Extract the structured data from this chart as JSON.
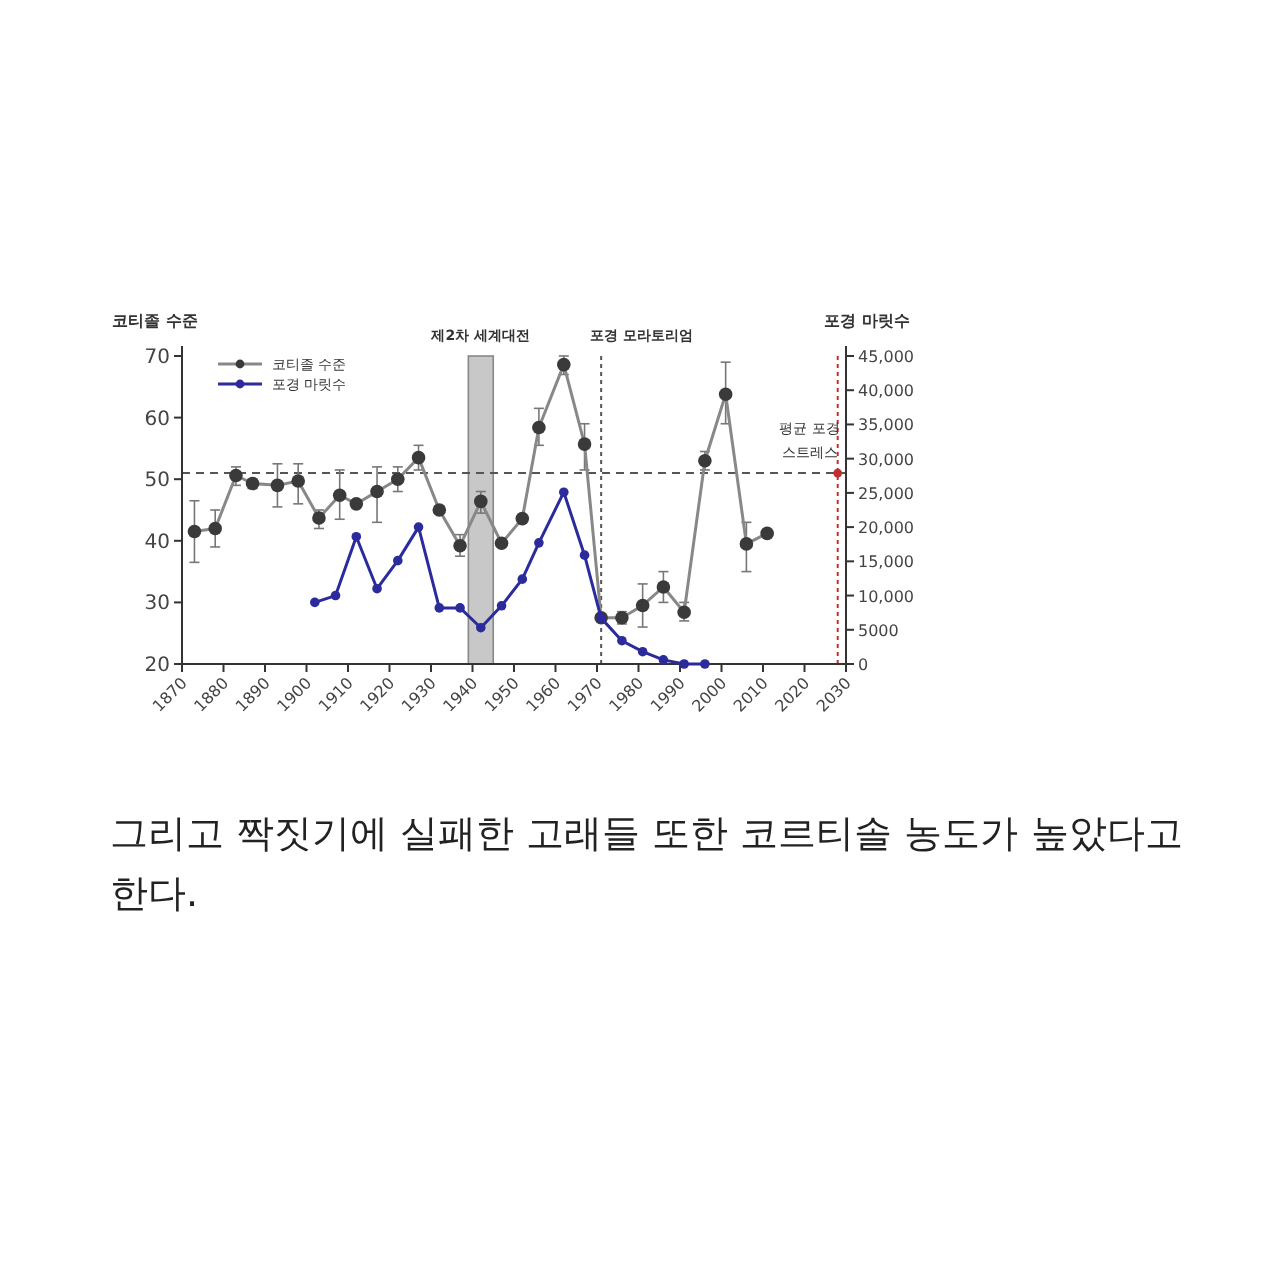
{
  "chart_data": {
    "type": "line",
    "ylabel": "코티졸 수준",
    "y2label": "포경 마릿수",
    "xlim": [
      1870,
      2030
    ],
    "xticks": [
      1870,
      1880,
      1890,
      1900,
      1910,
      1920,
      1930,
      1940,
      1950,
      1960,
      1970,
      1980,
      1990,
      2000,
      2010,
      2020,
      2030
    ],
    "ylim": [
      20,
      70
    ],
    "yticks": [
      20,
      30,
      40,
      50,
      60,
      70
    ],
    "y2lim": [
      0,
      45000
    ],
    "y2ticks": [
      0,
      {
        "value": 5000,
        "label": "5000"
      },
      {
        "value": 10000,
        "label": "10,000"
      },
      {
        "value": 15000,
        "label": "15,000"
      },
      {
        "value": 20000,
        "label": "20,000"
      },
      {
        "value": 25000,
        "label": "25,000"
      },
      {
        "value": 30000,
        "label": "30,000"
      },
      {
        "value": 35000,
        "label": "35,000"
      },
      {
        "value": 40000,
        "label": "40,000"
      },
      {
        "value": 45000,
        "label": "45,000"
      }
    ],
    "marker": "circle",
    "legend": "top left",
    "grid": false,
    "series": [
      {
        "name": "코티졸 수준",
        "color": "#3a3a3a",
        "x": [
          1873,
          1878,
          1883,
          1887,
          1893,
          1898,
          1903,
          1908,
          1912,
          1917,
          1922,
          1927,
          1932,
          1937,
          1942,
          1947,
          1952,
          1956,
          1962,
          1967,
          1971,
          1976,
          1981,
          1986,
          1991,
          1996,
          2001,
          2006,
          2011
        ],
        "values": [
          41.5,
          42,
          50.6,
          49.3,
          49,
          49.7,
          43.7,
          47.4,
          46,
          48,
          50,
          53.5,
          45,
          39.2,
          46.4,
          39.6,
          43.6,
          58.4,
          68.6,
          55.7,
          27.5,
          27.5,
          29.5,
          32.5,
          28.4,
          53,
          63.8,
          39.5,
          41.2
        ],
        "errors": [
          [
            36.5,
            46.5
          ],
          [
            39,
            45
          ],
          [
            49,
            52
          ],
          [
            48.5,
            50
          ],
          [
            45.5,
            52.5
          ],
          [
            46,
            52.5
          ],
          [
            42,
            45
          ],
          [
            43.5,
            51.5
          ],
          null,
          [
            43,
            52
          ],
          [
            48,
            52
          ],
          [
            51.5,
            55.5
          ],
          null,
          [
            37.5,
            41
          ],
          [
            44.5,
            48
          ],
          null,
          null,
          [
            55.5,
            61.5
          ],
          [
            67,
            70
          ],
          [
            51.5,
            59
          ],
          null,
          [
            26.5,
            28.5
          ],
          [
            26,
            33
          ],
          [
            30,
            35
          ],
          [
            27,
            30
          ],
          [
            51.5,
            54.5
          ],
          [
            59,
            69
          ],
          [
            35,
            43
          ],
          null
        ]
      },
      {
        "name": "포경 마릿수",
        "color": "#2b2b9c",
        "axis": "y2",
        "x": [
          1902,
          1907,
          1912,
          1917,
          1922,
          1927,
          1932,
          1937,
          1942,
          1947,
          1952,
          1956,
          1962,
          1967,
          1971,
          1976,
          1981,
          1986,
          1991,
          1996
        ],
        "values": [
          9000,
          10000,
          18600,
          11000,
          15100,
          20000,
          8200,
          8200,
          5300,
          8500,
          12400,
          17700,
          25100,
          15900,
          6700,
          3400,
          1800,
          600,
          0,
          0
        ]
      },
      {
        "type": "scatter",
        "color": "#c03030",
        "x": [
          2028
        ],
        "values": [
          51
        ]
      }
    ],
    "bands": [
      {
        "axis": "x",
        "from": 1939,
        "to": 1945,
        "label": "제2차 세계대전",
        "color": "#c8c8c8"
      }
    ],
    "ref_lines": [
      {
        "axis": "y",
        "value": 51,
        "line_style": "dashed",
        "color": "#555555"
      },
      {
        "axis": "x",
        "value": 1971,
        "label": "포경 모라토리엄",
        "line_style": "dotted",
        "color": "#555555"
      },
      {
        "axis": "x",
        "value": 2028,
        "label": "평균 포경 스트레스",
        "line_style": "dotted",
        "color": "#c03030"
      }
    ],
    "annotations": [
      "그리고 짝짓기에 실패한 고래들 또한 코르티솔 농도가 높았다고 한다."
    ]
  }
}
